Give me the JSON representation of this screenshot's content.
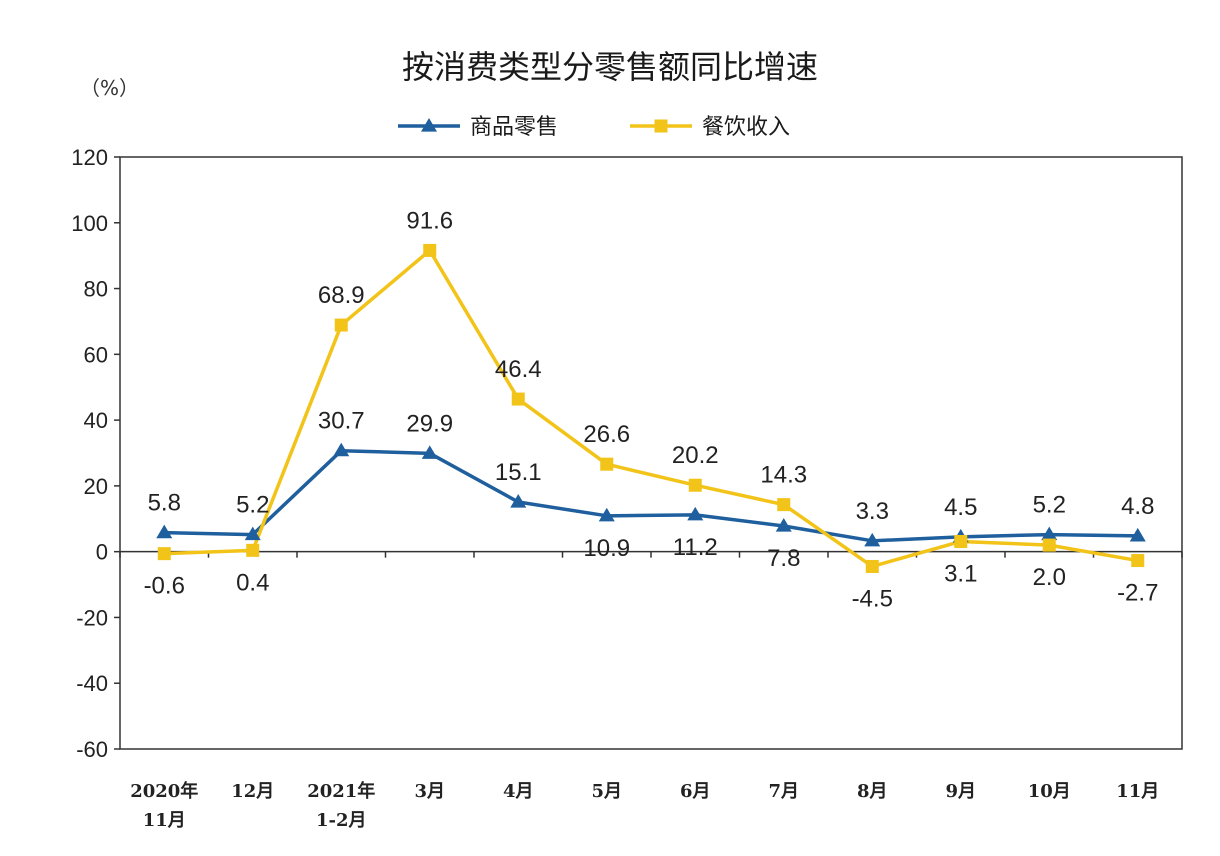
{
  "chart_data": {
    "type": "line",
    "title": "按消费类型分零售额同比增速",
    "ylabel": "（%）",
    "ylim": [
      -60,
      120
    ],
    "yticks": [
      -60,
      -40,
      -20,
      0,
      20,
      40,
      60,
      80,
      100,
      120
    ],
    "categories": [
      [
        "2020年",
        "11月"
      ],
      [
        "12月"
      ],
      [
        "2021年",
        "1-2月"
      ],
      [
        "3月"
      ],
      [
        "4月"
      ],
      [
        "5月"
      ],
      [
        "6月"
      ],
      [
        "7月"
      ],
      [
        "8月"
      ],
      [
        "9月"
      ],
      [
        "10月"
      ],
      [
        "11月"
      ]
    ],
    "legend_position": "top",
    "series": [
      {
        "name": "商品零售",
        "color": "#1f5f9e",
        "marker": "triangle",
        "values": [
          5.8,
          5.2,
          30.7,
          29.9,
          15.1,
          10.9,
          11.2,
          7.8,
          3.3,
          4.5,
          5.2,
          4.8
        ],
        "label_pos": [
          "above",
          "above",
          "above",
          "above",
          "above",
          "below",
          "below",
          "below",
          "above",
          "above",
          "above",
          "above"
        ]
      },
      {
        "name": "餐饮收入",
        "color": "#f2c318",
        "marker": "square",
        "values": [
          -0.6,
          0.4,
          68.9,
          91.6,
          46.4,
          26.6,
          20.2,
          14.3,
          -4.5,
          3.1,
          2.0,
          -2.7
        ],
        "label_pos": [
          "below",
          "below",
          "above",
          "above",
          "above",
          "above",
          "above",
          "above",
          "below",
          "below",
          "below",
          "below"
        ]
      }
    ]
  }
}
